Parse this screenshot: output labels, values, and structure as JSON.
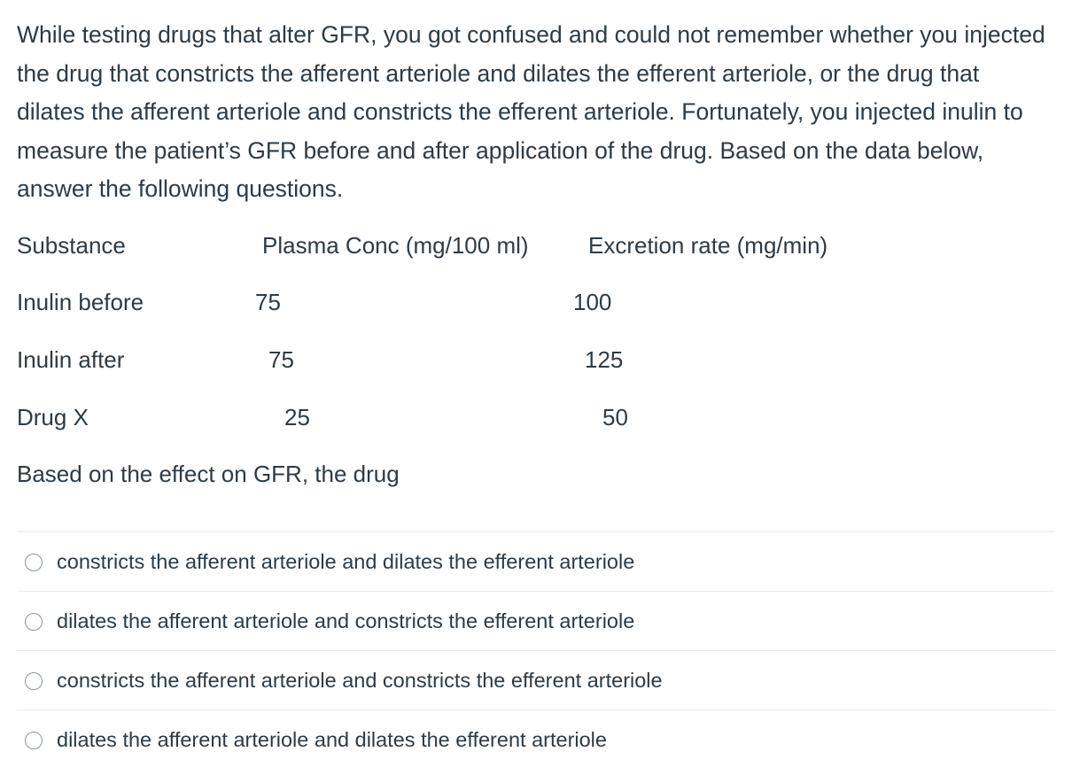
{
  "question": {
    "text": "While testing drugs that alter GFR, you got confused and could not remember whether you injected the drug that constricts the afferent arteriole and dilates the efferent arteriole, or the drug that dilates the afferent arteriole and constricts the efferent arteriole.  Fortunately, you injected inulin to measure the patient’s GFR before and after application of the drug.  Based on the data below, answer the following questions."
  },
  "data_table": {
    "headers": [
      "Substance",
      "Plasma Conc (mg/100 ml)",
      "Excretion rate (mg/min)"
    ],
    "rows": [
      {
        "substance": "Inulin before",
        "plasma_conc": "75",
        "excretion_rate": "100"
      },
      {
        "substance": "Inulin after",
        "plasma_conc": "75",
        "excretion_rate": "125"
      },
      {
        "substance": "Drug X",
        "plasma_conc": "25",
        "excretion_rate": "50"
      }
    ]
  },
  "prompt": "Based on the effect on GFR, the drug",
  "answers": [
    {
      "label": "constricts the afferent arteriole and dilates the efferent arteriole",
      "selected": false
    },
    {
      "label": "dilates the afferent arteriole and constricts the efferent arteriole",
      "selected": false
    },
    {
      "label": "constricts the afferent arteriole and constricts the efferent arteriole",
      "selected": false
    },
    {
      "label": "dilates the afferent arteriole and dilates the efferent arteriole",
      "selected": false
    }
  ]
}
